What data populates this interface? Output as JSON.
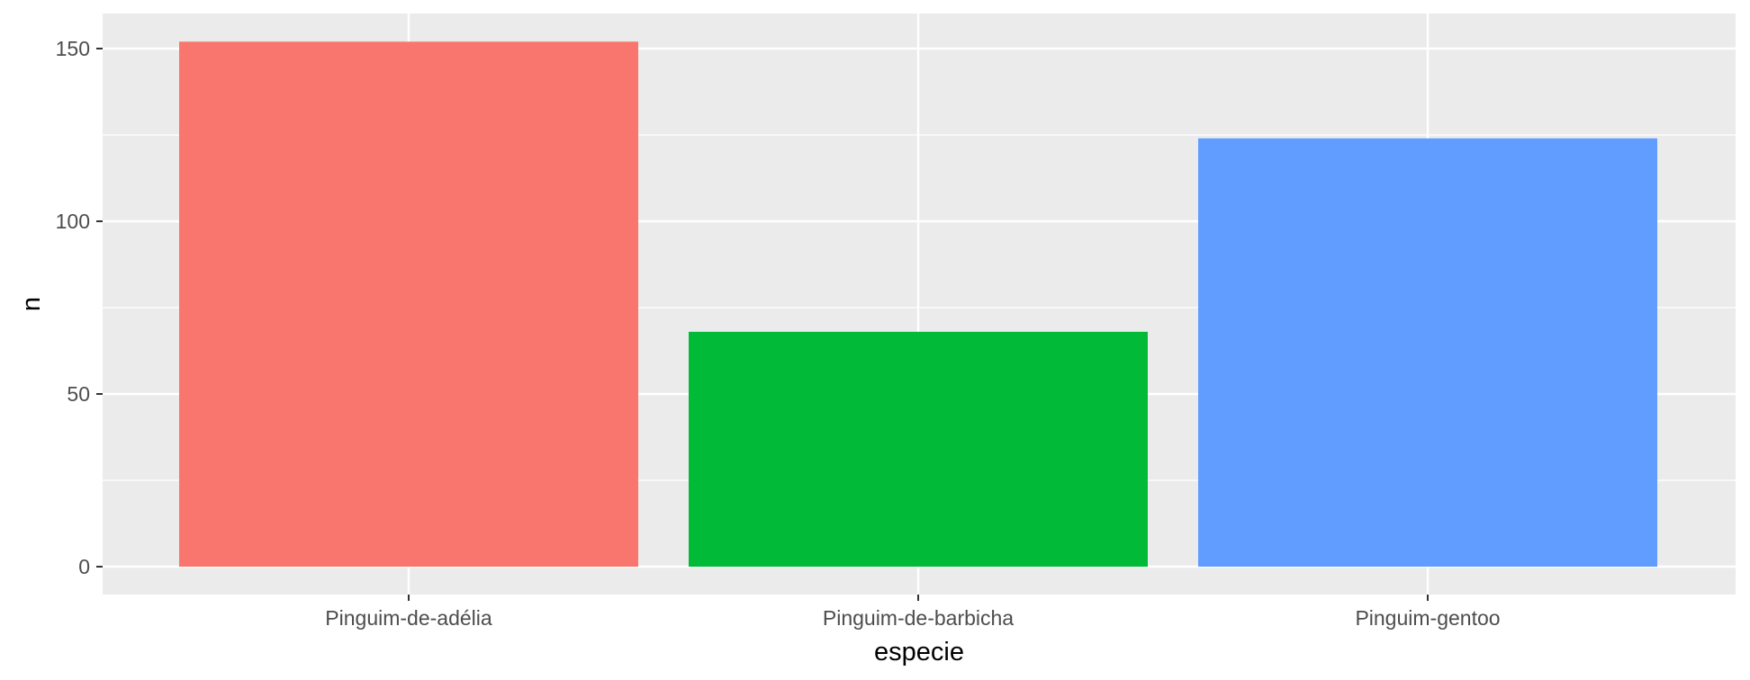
{
  "chart_data": {
    "type": "bar",
    "title": "",
    "xlabel": "especie",
    "ylabel": "n",
    "categories": [
      "Pinguim-de-adélia",
      "Pinguim-de-barbicha",
      "Pinguim-gentoo"
    ],
    "values": [
      152,
      68,
      124
    ],
    "colors": [
      "#F8766D",
      "#00BA38",
      "#619CFF"
    ],
    "ylim": [
      0,
      152
    ],
    "yticks": [
      0,
      50,
      100,
      150
    ],
    "ytick_labels": [
      "0",
      "50",
      "100",
      "150"
    ],
    "grid": true,
    "legend": "none",
    "panel_background": "#EBEBEB",
    "grid_color": "#FFFFFF",
    "tick_color": "#333333"
  }
}
